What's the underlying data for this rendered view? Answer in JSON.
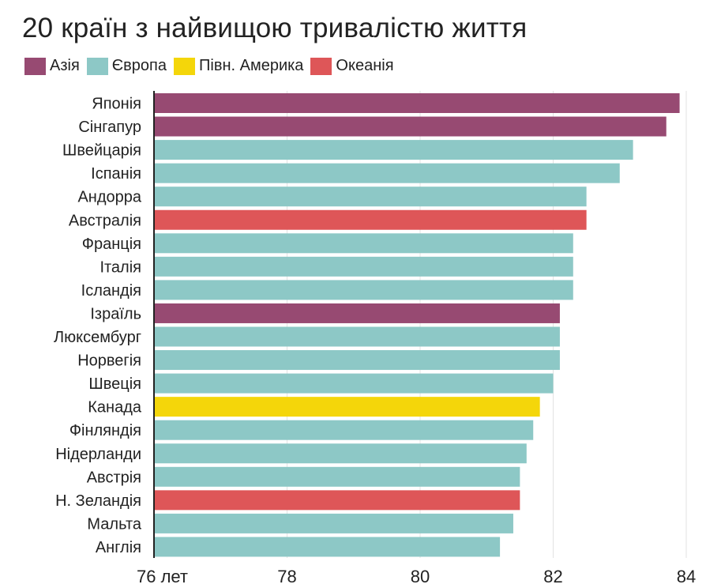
{
  "chart_data": {
    "type": "bar",
    "orientation": "horizontal",
    "title": "20 країн з найвищою тривалістю життя",
    "xlabel": "",
    "ylabel": "",
    "xlim": [
      76,
      84
    ],
    "x_ticks": [
      {
        "value": 76,
        "label": "76 лет"
      },
      {
        "value": 78,
        "label": "78"
      },
      {
        "value": 80,
        "label": "80"
      },
      {
        "value": 82,
        "label": "82"
      },
      {
        "value": 84,
        "label": "84"
      }
    ],
    "grid": "vertical",
    "legend_position": "top-left",
    "legend": [
      {
        "key": "asia",
        "label": "Азія",
        "color": "#974A72"
      },
      {
        "key": "europe",
        "label": "Європа",
        "color": "#8DC8C6"
      },
      {
        "key": "north_america",
        "label": "Півн. Америка",
        "color": "#F4D60A"
      },
      {
        "key": "oceania",
        "label": "Океанія",
        "color": "#DE5658"
      }
    ],
    "categories": [
      "Японія",
      "Сінгапур",
      "Швейцарія",
      "Іспанія",
      "Андорра",
      "Австралія",
      "Франція",
      "Італія",
      "Ісландія",
      "Ізраїль",
      "Люксембург",
      "Норвегія",
      "Швеція",
      "Канада",
      "Фінляндія",
      "Нідерланди",
      "Австрія",
      "Н. Зеландія",
      "Мальта",
      "Англія"
    ],
    "values": [
      83.9,
      83.7,
      83.2,
      83.0,
      82.5,
      82.5,
      82.3,
      82.3,
      82.3,
      82.1,
      82.1,
      82.1,
      82.0,
      81.8,
      81.7,
      81.6,
      81.5,
      81.5,
      81.4,
      81.2
    ],
    "region": [
      "asia",
      "asia",
      "europe",
      "europe",
      "europe",
      "oceania",
      "europe",
      "europe",
      "europe",
      "asia",
      "europe",
      "europe",
      "europe",
      "north_america",
      "europe",
      "europe",
      "europe",
      "oceania",
      "europe",
      "europe"
    ]
  }
}
